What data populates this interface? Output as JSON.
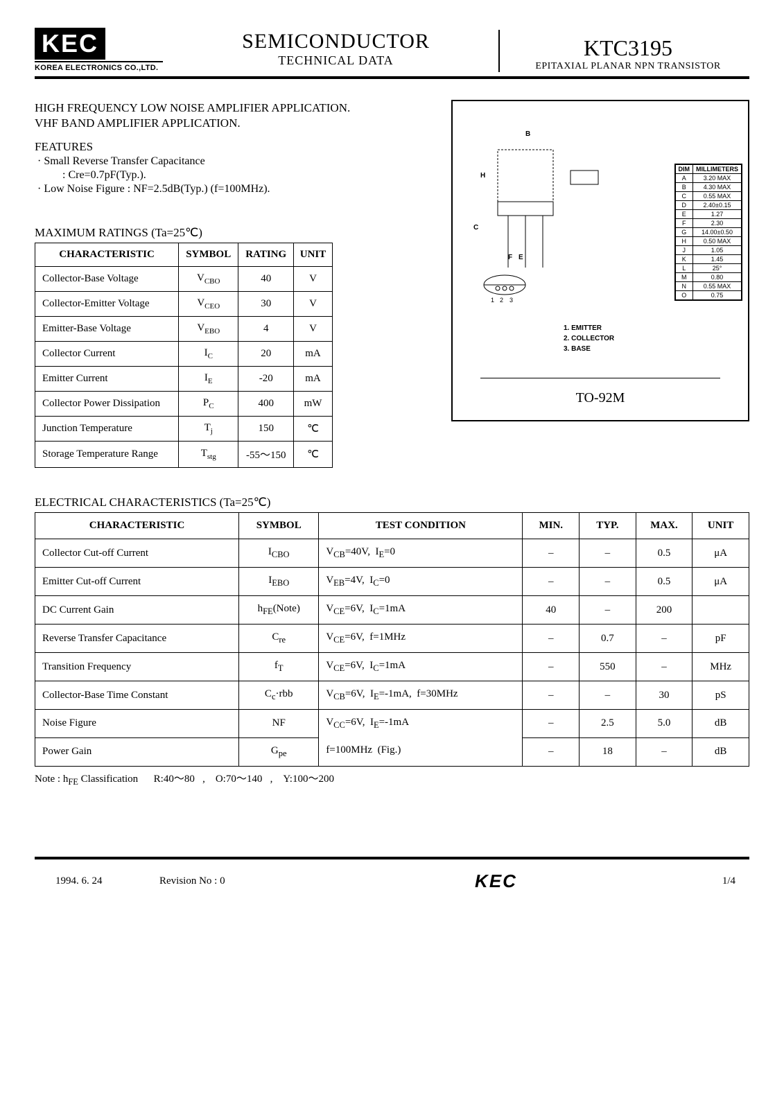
{
  "header": {
    "logo_text": "KEC",
    "logo_sub": "KOREA ELECTRONICS CO.,LTD.",
    "mid_line1": "SEMICONDUCTOR",
    "mid_line2": "TECHNICAL DATA",
    "part_number": "KTC3195",
    "part_desc": "EPITAXIAL PLANAR NPN TRANSISTOR"
  },
  "applications": [
    "HIGH FREQUENCY LOW NOISE AMPLIFIER APPLICATION.",
    "VHF BAND AMPLIFIER APPLICATION."
  ],
  "features_heading": "FEATURES",
  "features": [
    {
      "main": "· Small Reverse Transfer Capacitance",
      "sub": ": Cre=0.7pF(Typ.)."
    },
    {
      "main": "· Low Noise Figure : NF=2.5dB(Typ.) (f=100MHz).",
      "sub": ""
    }
  ],
  "max_ratings_title": "MAXIMUM RATINGS (Ta=25℃)",
  "max_ratings_headers": [
    "CHARACTERISTIC",
    "SYMBOL",
    "RATING",
    "UNIT"
  ],
  "max_ratings": [
    {
      "c": "Collector-Base Voltage",
      "s": "V",
      "sub": "CBO",
      "r": "40",
      "u": "V"
    },
    {
      "c": "Collector-Emitter Voltage",
      "s": "V",
      "sub": "CEO",
      "r": "30",
      "u": "V"
    },
    {
      "c": "Emitter-Base Voltage",
      "s": "V",
      "sub": "EBO",
      "r": "4",
      "u": "V"
    },
    {
      "c": "Collector Current",
      "s": "I",
      "sub": "C",
      "r": "20",
      "u": "mA"
    },
    {
      "c": "Emitter Current",
      "s": "I",
      "sub": "E",
      "r": "-20",
      "u": "mA"
    },
    {
      "c": "Collector Power Dissipation",
      "s": "P",
      "sub": "C",
      "r": "400",
      "u": "mW"
    },
    {
      "c": "Junction Temperature",
      "s": "T",
      "sub": "j",
      "r": "150",
      "u": "℃"
    },
    {
      "c": "Storage Temperature Range",
      "s": "T",
      "sub": "stg",
      "r": "-55～150",
      "u": "℃"
    }
  ],
  "package": {
    "name": "TO-92M",
    "pins": [
      "1. EMITTER",
      "2. COLLECTOR",
      "3. BASE"
    ],
    "dim_header": [
      "DIM",
      "MILLIMETERS"
    ],
    "dims": [
      [
        "A",
        "3.20 MAX"
      ],
      [
        "B",
        "4.30 MAX"
      ],
      [
        "C",
        "0.55 MAX"
      ],
      [
        "D",
        "2.40±0.15"
      ],
      [
        "E",
        "1.27"
      ],
      [
        "F",
        "2.30"
      ],
      [
        "G",
        "14.00±0.50"
      ],
      [
        "H",
        "0.50 MAX"
      ],
      [
        "J",
        "1.05"
      ],
      [
        "K",
        "1.45"
      ],
      [
        "L",
        "25°"
      ],
      [
        "M",
        "0.80"
      ],
      [
        "N",
        "0.55 MAX"
      ],
      [
        "O",
        "0.75"
      ]
    ]
  },
  "elec_title": "ELECTRICAL CHARACTERISTICS (Ta=25℃)",
  "elec_headers": [
    "CHARACTERISTIC",
    "SYMBOL",
    "TEST CONDITION",
    "MIN.",
    "TYP.",
    "MAX.",
    "UNIT"
  ],
  "elec": [
    {
      "c": "Collector Cut-off Current",
      "s": "I<sub>CBO</sub>",
      "t": "V<sub>CB</sub>=40V,&nbsp;&nbsp;I<sub>E</sub>=0",
      "min": "–",
      "typ": "–",
      "max": "0.5",
      "u": "μA"
    },
    {
      "c": "Emitter Cut-off Current",
      "s": "I<sub>EBO</sub>",
      "t": "V<sub>EB</sub>=4V,&nbsp;&nbsp;I<sub>C</sub>=0",
      "min": "–",
      "typ": "–",
      "max": "0.5",
      "u": "μA"
    },
    {
      "c": "DC Current Gain",
      "s": "h<sub>FE</sub>(Note)",
      "t": "V<sub>CE</sub>=6V,&nbsp;&nbsp;I<sub>C</sub>=1mA",
      "min": "40",
      "typ": "–",
      "max": "200",
      "u": ""
    },
    {
      "c": "Reverse Transfer Capacitance",
      "s": "C<sub>re</sub>",
      "t": "V<sub>CE</sub>=6V,&nbsp;&nbsp;f=1MHz",
      "min": "–",
      "typ": "0.7",
      "max": "–",
      "u": "pF"
    },
    {
      "c": "Transition Frequency",
      "s": "f<sub>T</sub>",
      "t": "V<sub>CE</sub>=6V,&nbsp;&nbsp;I<sub>C</sub>=1mA",
      "min": "–",
      "typ": "550",
      "max": "–",
      "u": "MHz"
    },
    {
      "c": "Collector-Base Time Constant",
      "s": "C<sub>c</sub>·rbb",
      "t": "V<sub>CB</sub>=6V,&nbsp;&nbsp;I<sub>E</sub>=-1mA,&nbsp;&nbsp;f=30MHz",
      "min": "–",
      "typ": "–",
      "max": "30",
      "u": "pS"
    },
    {
      "c": "Noise Figure",
      "s": "NF",
      "t": "V<sub>CC</sub>=6V,&nbsp;&nbsp;I<sub>E</sub>=-1mA",
      "min": "–",
      "typ": "2.5",
      "max": "5.0",
      "u": "dB",
      "merge": "top"
    },
    {
      "c": "Power Gain",
      "s": "G<sub>pe</sub>",
      "t": "f=100MHz&nbsp;&nbsp;(Fig.)",
      "min": "–",
      "typ": "18",
      "max": "–",
      "u": "dB",
      "merge": "bot"
    }
  ],
  "note": "Note : h<sub>FE</sub> Classification&nbsp;&nbsp;&nbsp;&nbsp;&nbsp;&nbsp;R:40～80&nbsp;&nbsp;&nbsp;,&nbsp;&nbsp;&nbsp;&nbsp;O:70～140&nbsp;&nbsp;&nbsp;,&nbsp;&nbsp;&nbsp;&nbsp;Y:100～200",
  "footer": {
    "date": "1994. 6. 24",
    "rev": "Revision No : 0",
    "logo": "KEC",
    "page": "1/4"
  }
}
